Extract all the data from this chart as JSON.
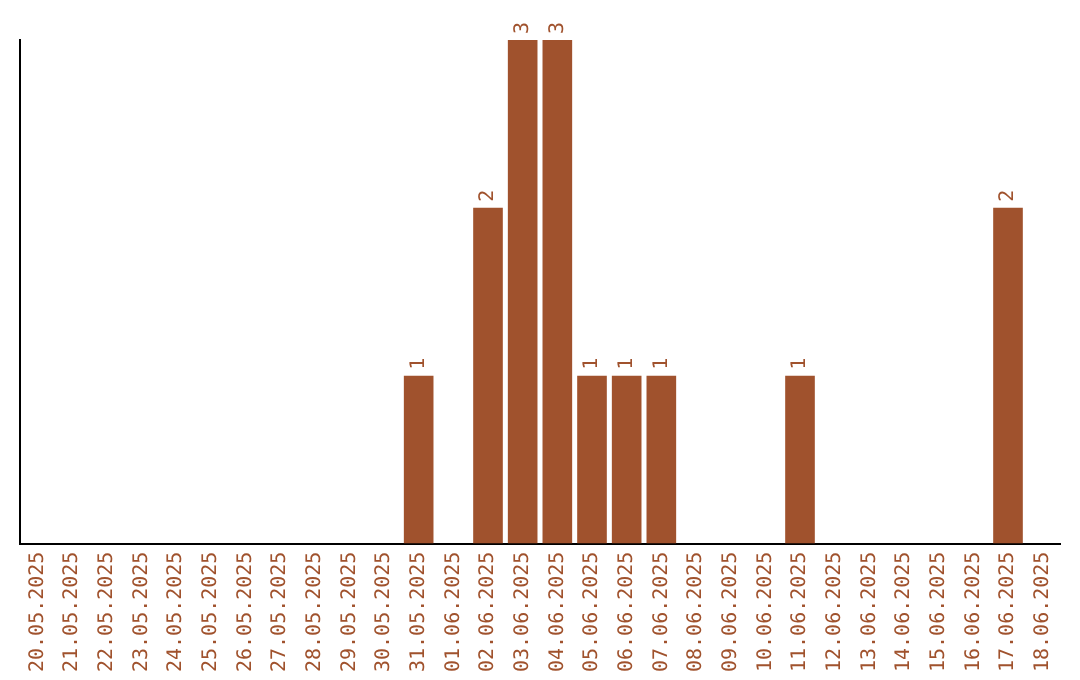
{
  "chart_data": {
    "type": "bar",
    "categories": [
      "20.05.2025",
      "21.05.2025",
      "22.05.2025",
      "23.05.2025",
      "24.05.2025",
      "25.05.2025",
      "26.05.2025",
      "27.05.2025",
      "28.05.2025",
      "29.05.2025",
      "30.05.2025",
      "31.05.2025",
      "01.06.2025",
      "02.06.2025",
      "03.06.2025",
      "04.06.2025",
      "05.06.2025",
      "06.06.2025",
      "07.06.2025",
      "08.06.2025",
      "09.06.2025",
      "10.06.2025",
      "11.06.2025",
      "12.06.2025",
      "13.06.2025",
      "14.06.2025",
      "15.06.2025",
      "16.06.2025",
      "17.06.2025",
      "18.06.2025"
    ],
    "values": [
      0,
      0,
      0,
      0,
      0,
      0,
      0,
      0,
      0,
      0,
      0,
      1,
      0,
      2,
      3,
      3,
      1,
      1,
      1,
      0,
      0,
      0,
      1,
      0,
      0,
      0,
      0,
      0,
      2,
      0
    ],
    "value_labels": [
      null,
      null,
      null,
      null,
      null,
      null,
      null,
      null,
      null,
      null,
      null,
      "1",
      null,
      "2",
      "3",
      "3",
      "1",
      "1",
      "1",
      null,
      null,
      null,
      "1",
      null,
      null,
      null,
      null,
      null,
      "2",
      null
    ],
    "color": "#a0522d",
    "tick_labels": "x",
    "grid": false,
    "legend": false
  }
}
